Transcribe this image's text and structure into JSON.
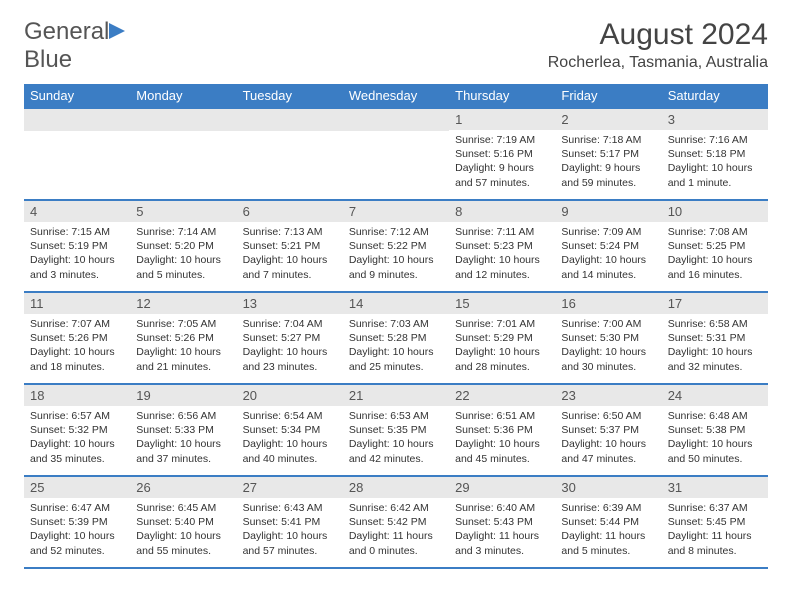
{
  "logo": {
    "line1": "General",
    "line2": "Blue"
  },
  "title": "August 2024",
  "location": "Rocherlea, Tasmania, Australia",
  "colors": {
    "header_bg": "#3b7dc4",
    "header_text": "#ffffff",
    "daynum_bg": "#e8e8e8",
    "border": "#3b7dc4",
    "text": "#333333",
    "title": "#444444"
  },
  "fonts": {
    "title_size": 30,
    "location_size": 16,
    "header_size": 13,
    "daynum_size": 13,
    "cell_size": 10.5
  },
  "layout": {
    "columns": 7,
    "rows": 5
  },
  "weekdays": [
    "Sunday",
    "Monday",
    "Tuesday",
    "Wednesday",
    "Thursday",
    "Friday",
    "Saturday"
  ],
  "first_day_column": 4,
  "days": [
    {
      "n": "1",
      "sunrise": "7:19 AM",
      "sunset": "5:16 PM",
      "daylight": "9 hours and 57 minutes."
    },
    {
      "n": "2",
      "sunrise": "7:18 AM",
      "sunset": "5:17 PM",
      "daylight": "9 hours and 59 minutes."
    },
    {
      "n": "3",
      "sunrise": "7:16 AM",
      "sunset": "5:18 PM",
      "daylight": "10 hours and 1 minute."
    },
    {
      "n": "4",
      "sunrise": "7:15 AM",
      "sunset": "5:19 PM",
      "daylight": "10 hours and 3 minutes."
    },
    {
      "n": "5",
      "sunrise": "7:14 AM",
      "sunset": "5:20 PM",
      "daylight": "10 hours and 5 minutes."
    },
    {
      "n": "6",
      "sunrise": "7:13 AM",
      "sunset": "5:21 PM",
      "daylight": "10 hours and 7 minutes."
    },
    {
      "n": "7",
      "sunrise": "7:12 AM",
      "sunset": "5:22 PM",
      "daylight": "10 hours and 9 minutes."
    },
    {
      "n": "8",
      "sunrise": "7:11 AM",
      "sunset": "5:23 PM",
      "daylight": "10 hours and 12 minutes."
    },
    {
      "n": "9",
      "sunrise": "7:09 AM",
      "sunset": "5:24 PM",
      "daylight": "10 hours and 14 minutes."
    },
    {
      "n": "10",
      "sunrise": "7:08 AM",
      "sunset": "5:25 PM",
      "daylight": "10 hours and 16 minutes."
    },
    {
      "n": "11",
      "sunrise": "7:07 AM",
      "sunset": "5:26 PM",
      "daylight": "10 hours and 18 minutes."
    },
    {
      "n": "12",
      "sunrise": "7:05 AM",
      "sunset": "5:26 PM",
      "daylight": "10 hours and 21 minutes."
    },
    {
      "n": "13",
      "sunrise": "7:04 AM",
      "sunset": "5:27 PM",
      "daylight": "10 hours and 23 minutes."
    },
    {
      "n": "14",
      "sunrise": "7:03 AM",
      "sunset": "5:28 PM",
      "daylight": "10 hours and 25 minutes."
    },
    {
      "n": "15",
      "sunrise": "7:01 AM",
      "sunset": "5:29 PM",
      "daylight": "10 hours and 28 minutes."
    },
    {
      "n": "16",
      "sunrise": "7:00 AM",
      "sunset": "5:30 PM",
      "daylight": "10 hours and 30 minutes."
    },
    {
      "n": "17",
      "sunrise": "6:58 AM",
      "sunset": "5:31 PM",
      "daylight": "10 hours and 32 minutes."
    },
    {
      "n": "18",
      "sunrise": "6:57 AM",
      "sunset": "5:32 PM",
      "daylight": "10 hours and 35 minutes."
    },
    {
      "n": "19",
      "sunrise": "6:56 AM",
      "sunset": "5:33 PM",
      "daylight": "10 hours and 37 minutes."
    },
    {
      "n": "20",
      "sunrise": "6:54 AM",
      "sunset": "5:34 PM",
      "daylight": "10 hours and 40 minutes."
    },
    {
      "n": "21",
      "sunrise": "6:53 AM",
      "sunset": "5:35 PM",
      "daylight": "10 hours and 42 minutes."
    },
    {
      "n": "22",
      "sunrise": "6:51 AM",
      "sunset": "5:36 PM",
      "daylight": "10 hours and 45 minutes."
    },
    {
      "n": "23",
      "sunrise": "6:50 AM",
      "sunset": "5:37 PM",
      "daylight": "10 hours and 47 minutes."
    },
    {
      "n": "24",
      "sunrise": "6:48 AM",
      "sunset": "5:38 PM",
      "daylight": "10 hours and 50 minutes."
    },
    {
      "n": "25",
      "sunrise": "6:47 AM",
      "sunset": "5:39 PM",
      "daylight": "10 hours and 52 minutes."
    },
    {
      "n": "26",
      "sunrise": "6:45 AM",
      "sunset": "5:40 PM",
      "daylight": "10 hours and 55 minutes."
    },
    {
      "n": "27",
      "sunrise": "6:43 AM",
      "sunset": "5:41 PM",
      "daylight": "10 hours and 57 minutes."
    },
    {
      "n": "28",
      "sunrise": "6:42 AM",
      "sunset": "5:42 PM",
      "daylight": "11 hours and 0 minutes."
    },
    {
      "n": "29",
      "sunrise": "6:40 AM",
      "sunset": "5:43 PM",
      "daylight": "11 hours and 3 minutes."
    },
    {
      "n": "30",
      "sunrise": "6:39 AM",
      "sunset": "5:44 PM",
      "daylight": "11 hours and 5 minutes."
    },
    {
      "n": "31",
      "sunrise": "6:37 AM",
      "sunset": "5:45 PM",
      "daylight": "11 hours and 8 minutes."
    }
  ],
  "labels": {
    "sunrise": "Sunrise:",
    "sunset": "Sunset:",
    "daylight": "Daylight:"
  }
}
